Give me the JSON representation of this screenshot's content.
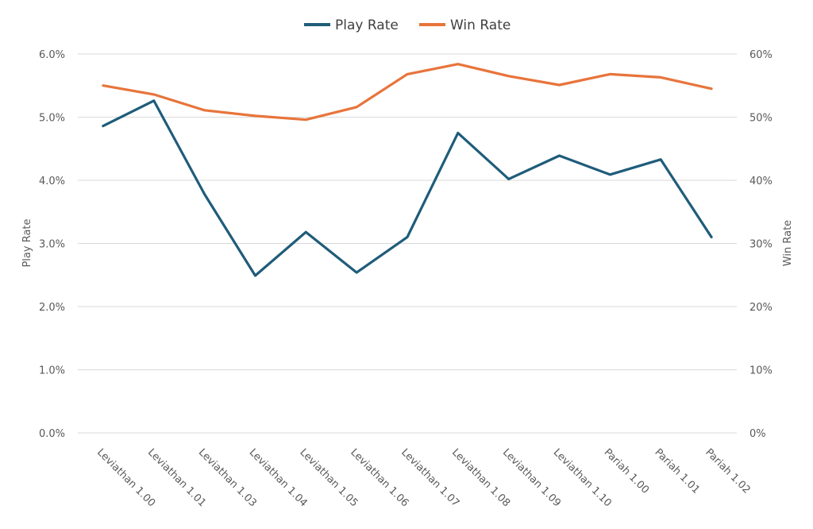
{
  "chart_data": {
    "type": "line",
    "categories": [
      "Leviathan 1.00",
      "Leviathan 1.01",
      "Leviathan 1.03",
      "Leviathan 1.04",
      "Leviathan 1.05",
      "Leviathan 1.06",
      "Leviathan 1.07",
      "Leviathan 1.08",
      "Leviathan 1.09",
      "Leviathan 1.10",
      "Pariah 1.00",
      "Pariah 1.01",
      "Pariah 1.02"
    ],
    "series": [
      {
        "name": "Play Rate",
        "axis": "left",
        "color": "#1F5C7A",
        "values": [
          0.0486,
          0.0526,
          0.0378,
          0.0249,
          0.0318,
          0.0254,
          0.031,
          0.0475,
          0.0402,
          0.0439,
          0.0409,
          0.0433,
          0.031
        ]
      },
      {
        "name": "Win Rate",
        "axis": "right",
        "color": "#E8743B",
        "values": [
          0.55,
          0.536,
          0.511,
          0.502,
          0.496,
          0.516,
          0.568,
          0.584,
          0.565,
          0.551,
          0.568,
          0.563,
          0.545
        ]
      }
    ],
    "y_left": {
      "label": "Play Rate",
      "range": [
        0,
        0.06
      ],
      "ticks": [
        "0.0%",
        "1.0%",
        "2.0%",
        "3.0%",
        "4.0%",
        "5.0%",
        "6.0%"
      ]
    },
    "y_right": {
      "label": "Win Rate",
      "range": [
        0,
        0.6
      ],
      "ticks": [
        "0%",
        "10%",
        "20%",
        "30%",
        "40%",
        "50%",
        "60%"
      ]
    },
    "grid": true,
    "legend": "top-center",
    "gridline_color": "#D9D9D9"
  }
}
